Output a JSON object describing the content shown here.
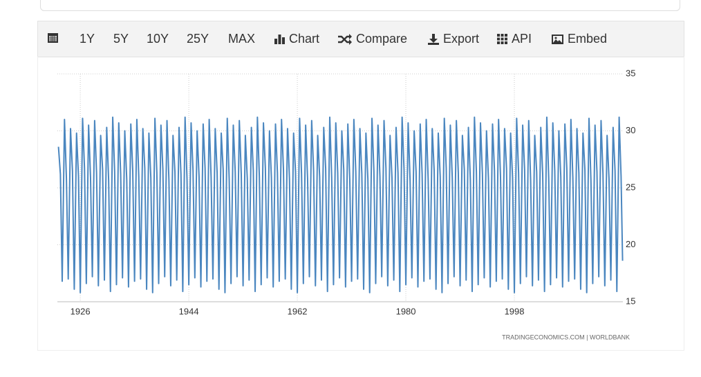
{
  "toolbar": [
    "1Y",
    "5Y",
    "10Y",
    "25Y",
    "MAX",
    "Chart",
    "Compare",
    "Export",
    "API",
    "Embed"
  ],
  "chart_data": {
    "type": "line",
    "source": "TRADINGECONOMICS.COM  |  WORLDBANK",
    "color": "#4a86bf",
    "xlim": [
      1922.2,
      2016
    ],
    "xticks": [
      1926,
      1944,
      1962,
      1980,
      1998
    ],
    "ylim": [
      15,
      35
    ],
    "yticks": [
      15,
      20,
      25,
      30,
      35
    ],
    "grid": true,
    "x": [
      1922.38,
      1922.7,
      1923,
      1923.38,
      1923.7,
      1924,
      1924.38,
      1924.7,
      1925,
      1925.38,
      1925.7,
      1926,
      1926.38,
      1926.7,
      1927,
      1927.38,
      1927.7,
      1928,
      1928.38,
      1928.7,
      1929,
      1929.38,
      1929.7,
      1930,
      1930.38,
      1930.7,
      1931,
      1931.38,
      1931.7,
      1932,
      1932.38,
      1932.7,
      1933,
      1933.38,
      1933.7,
      1934,
      1934.38,
      1934.7,
      1935,
      1935.38,
      1935.7,
      1936,
      1936.38,
      1936.7,
      1937,
      1937.38,
      1937.7,
      1938,
      1938.38,
      1938.7,
      1939,
      1939.38,
      1939.7,
      1940,
      1940.38,
      1940.7,
      1941,
      1941.38,
      1941.7,
      1942,
      1942.38,
      1942.7,
      1943,
      1943.38,
      1943.7,
      1944,
      1944.38,
      1944.7,
      1945,
      1945.38,
      1945.7,
      1946,
      1946.38,
      1946.7,
      1947,
      1947.38,
      1947.7,
      1948,
      1948.38,
      1948.7,
      1949,
      1949.38,
      1949.7,
      1950,
      1950.38,
      1950.7,
      1951,
      1951.38,
      1951.7,
      1952,
      1952.38,
      1952.7,
      1953,
      1953.38,
      1953.7,
      1954,
      1954.38,
      1954.7,
      1955,
      1955.38,
      1955.7,
      1956,
      1956.38,
      1956.7,
      1957,
      1957.38,
      1957.7,
      1958,
      1958.38,
      1958.7,
      1959,
      1959.38,
      1959.7,
      1960,
      1960.38,
      1960.7,
      1961,
      1961.38,
      1961.7,
      1962,
      1962.38,
      1962.7,
      1963,
      1963.38,
      1963.7,
      1964,
      1964.38,
      1964.7,
      1965,
      1965.38,
      1965.7,
      1966,
      1966.38,
      1966.7,
      1967,
      1967.38,
      1967.7,
      1968,
      1968.38,
      1968.7,
      1969,
      1969.38,
      1969.7,
      1970,
      1970.38,
      1970.7,
      1971,
      1971.38,
      1971.7,
      1972,
      1972.38,
      1972.7,
      1973,
      1973.38,
      1973.7,
      1974,
      1974.38,
      1974.7,
      1975,
      1975.38,
      1975.7,
      1976,
      1976.38,
      1976.7,
      1977,
      1977.38,
      1977.7,
      1978,
      1978.38,
      1978.7,
      1979,
      1979.38,
      1979.7,
      1980,
      1980.38,
      1980.7,
      1981,
      1981.38,
      1981.7,
      1982,
      1982.38,
      1982.7,
      1983,
      1983.38,
      1983.7,
      1984,
      1984.38,
      1984.7,
      1985,
      1985.38,
      1985.7,
      1986,
      1986.38,
      1986.7,
      1987,
      1987.38,
      1987.7,
      1988,
      1988.38,
      1988.7,
      1989,
      1989.38,
      1989.7,
      1990,
      1990.38,
      1990.7,
      1991,
      1991.38,
      1991.7,
      1992,
      1992.38,
      1992.7,
      1993,
      1993.38,
      1993.7,
      1994,
      1994.38,
      1994.7,
      1995,
      1995.38,
      1995.7,
      1996,
      1996.38,
      1996.7,
      1997,
      1997.38,
      1997.7,
      1998,
      1998.38,
      1998.7,
      1999,
      1999.38,
      1999.7,
      2000,
      2000.38,
      2000.7,
      2001,
      2001.38,
      2001.7,
      2002,
      2002.38,
      2002.7,
      2003,
      2003.38,
      2003.7,
      2004,
      2004.38,
      2004.7,
      2005,
      2005.38,
      2005.7,
      2006,
      2006.38,
      2006.7,
      2007,
      2007.38,
      2007.7,
      2008,
      2008.38,
      2008.7,
      2009,
      2009.38,
      2009.7,
      2010,
      2010.38,
      2010.7,
      2011,
      2011.38,
      2011.7,
      2012,
      2012.38,
      2012.7,
      2013,
      2013.38,
      2013.7,
      2014,
      2014.38,
      2014.7,
      2015,
      2015.38,
      2015.7,
      2015.95
    ],
    "values": [
      28.6,
      26.2,
      16.8,
      31.0,
      25.8,
      17.0,
      30.2,
      26.5,
      16.1,
      29.8,
      26.0,
      15.8,
      31.1,
      26.7,
      16.6,
      30.5,
      25.9,
      17.2,
      30.9,
      26.3,
      16.4,
      29.6,
      26.6,
      16.9,
      30.3,
      25.7,
      15.9,
      31.2,
      26.4,
      16.5,
      30.7,
      26.2,
      17.1,
      30.0,
      25.8,
      16.3,
      30.6,
      26.5,
      16.8,
      31.0,
      26.0,
      17.0,
      30.2,
      26.7,
      16.1,
      29.8,
      25.9,
      15.8,
      31.1,
      26.3,
      16.6,
      30.5,
      26.6,
      17.2,
      30.9,
      25.7,
      16.4,
      29.6,
      26.4,
      16.9,
      30.3,
      26.2,
      15.9,
      31.2,
      25.8,
      16.5,
      30.7,
      26.5,
      17.1,
      30.0,
      26.0,
      16.3,
      30.6,
      26.7,
      16.8,
      31.0,
      25.9,
      17.0,
      30.2,
      26.3,
      16.1,
      29.8,
      26.6,
      15.8,
      31.1,
      25.7,
      16.6,
      30.5,
      26.4,
      17.2,
      30.9,
      26.2,
      16.4,
      29.6,
      25.8,
      16.9,
      30.3,
      26.5,
      15.9,
      31.2,
      26.0,
      16.5,
      30.7,
      26.7,
      17.1,
      30.0,
      25.9,
      16.3,
      30.6,
      26.3,
      16.8,
      31.0,
      26.6,
      17.0,
      30.2,
      25.7,
      16.1,
      29.8,
      26.4,
      15.8,
      31.1,
      26.2,
      16.6,
      30.5,
      25.8,
      17.2,
      30.9,
      26.5,
      16.4,
      29.6,
      26.0,
      16.9,
      30.3,
      26.7,
      15.9,
      31.2,
      25.9,
      16.5,
      30.7,
      26.3,
      17.1,
      30.0,
      26.6,
      16.3,
      30.6,
      25.7,
      16.8,
      31.0,
      26.4,
      17.0,
      30.2,
      26.2,
      16.1,
      29.8,
      25.8,
      15.8,
      31.1,
      26.5,
      16.6,
      30.5,
      26.0,
      17.2,
      30.9,
      26.7,
      16.4,
      29.6,
      25.9,
      16.9,
      30.3,
      26.3,
      15.9,
      31.2,
      26.6,
      16.5,
      30.7,
      25.7,
      17.1,
      30.0,
      26.4,
      16.3,
      30.6,
      26.2,
      16.8,
      31.0,
      25.8,
      17.0,
      30.2,
      26.5,
      16.1,
      29.8,
      26.0,
      15.8,
      31.1,
      26.7,
      16.6,
      30.5,
      25.9,
      17.2,
      30.9,
      26.3,
      16.4,
      29.6,
      26.6,
      16.9,
      30.3,
      25.7,
      15.9,
      31.2,
      26.4,
      16.5,
      30.7,
      26.2,
      17.1,
      30.0,
      25.8,
      16.3,
      30.6,
      26.5,
      16.8,
      31.0,
      26.0,
      17.0,
      30.2,
      26.7,
      16.1,
      29.8,
      25.9,
      15.8,
      31.1,
      26.3,
      16.6,
      30.5,
      26.6,
      17.2,
      30.9,
      25.7,
      16.4,
      29.6,
      26.4,
      16.9,
      30.3,
      26.2,
      15.9,
      31.2,
      25.8,
      16.5,
      30.7,
      26.5,
      17.1,
      30.0,
      26.0,
      16.3,
      30.6,
      26.7,
      16.8,
      31.0,
      25.9,
      17.0,
      30.2,
      26.3,
      16.1,
      29.8,
      26.6,
      15.8,
      31.1,
      25.7,
      16.6,
      30.5,
      26.4,
      17.2,
      30.9,
      26.2,
      16.4,
      29.6,
      25.8,
      16.9,
      30.3,
      26.5,
      15.9,
      31.2,
      26.0,
      18.6
    ]
  }
}
